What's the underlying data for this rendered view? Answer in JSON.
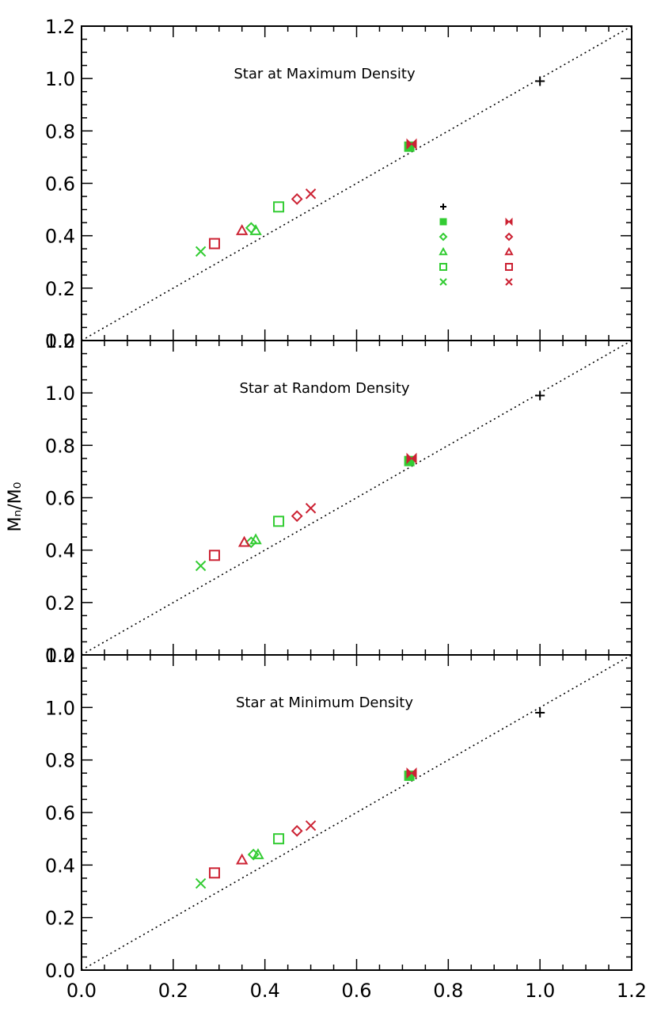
{
  "chart_data": {
    "type": "scatter",
    "xlabel": "",
    "ylabel": "Mₙ/M₀",
    "xlim": [
      0.0,
      1.2
    ],
    "ylim": [
      0.0,
      1.2
    ],
    "x_ticks": [
      "0.0",
      "0.2",
      "0.4",
      "0.6",
      "0.8",
      "1.0",
      "1.2"
    ],
    "y_ticks": [
      "0.0",
      "0.2",
      "0.4",
      "0.6",
      "0.8",
      "1.0",
      "1.2"
    ],
    "reference_line": {
      "style": "dotted",
      "color": "#000000",
      "from": [
        0.0,
        0.0
      ],
      "to": [
        1.2,
        1.2
      ]
    },
    "legend": {
      "placement": "right-middle",
      "entries": [
        {
          "name": "",
          "marker": "plus",
          "color": "#000000"
        },
        {
          "name": "",
          "marker": "filled-square",
          "color": "#33cc33"
        },
        {
          "name": "",
          "marker": "diamond",
          "color": "#33cc33"
        },
        {
          "name": "",
          "marker": "triangle",
          "color": "#33cc33"
        },
        {
          "name": "",
          "marker": "square",
          "color": "#33cc33"
        },
        {
          "name": "",
          "marker": "x",
          "color": "#33cc33"
        },
        {
          "name": "",
          "marker": "bowtie",
          "color": "#cc2233"
        },
        {
          "name": "",
          "marker": "diamond",
          "color": "#cc2233"
        },
        {
          "name": "",
          "marker": "triangle",
          "color": "#cc2233"
        },
        {
          "name": "",
          "marker": "square",
          "color": "#cc2233"
        },
        {
          "name": "",
          "marker": "x",
          "color": "#cc2233"
        }
      ]
    },
    "panels": [
      {
        "title": "Star at Maximum Density",
        "show_legend": true,
        "points": [
          {
            "x": 1.0,
            "y": 0.99,
            "marker": "plus",
            "color": "#000000"
          },
          {
            "x": 0.715,
            "y": 0.74,
            "marker": "filled-square",
            "color": "#33cc33"
          },
          {
            "x": 0.72,
            "y": 0.75,
            "marker": "bowtie",
            "color": "#cc2233"
          },
          {
            "x": 0.37,
            "y": 0.43,
            "marker": "diamond",
            "color": "#33cc33"
          },
          {
            "x": 0.38,
            "y": 0.42,
            "marker": "triangle",
            "color": "#33cc33"
          },
          {
            "x": 0.43,
            "y": 0.51,
            "marker": "square",
            "color": "#33cc33"
          },
          {
            "x": 0.26,
            "y": 0.34,
            "marker": "x",
            "color": "#33cc33"
          },
          {
            "x": 0.47,
            "y": 0.54,
            "marker": "diamond",
            "color": "#cc2233"
          },
          {
            "x": 0.35,
            "y": 0.42,
            "marker": "triangle",
            "color": "#cc2233"
          },
          {
            "x": 0.29,
            "y": 0.37,
            "marker": "square",
            "color": "#cc2233"
          },
          {
            "x": 0.5,
            "y": 0.56,
            "marker": "x",
            "color": "#cc2233"
          }
        ]
      },
      {
        "title": "Star at Random Density",
        "show_legend": false,
        "points": [
          {
            "x": 1.0,
            "y": 0.99,
            "marker": "plus",
            "color": "#000000"
          },
          {
            "x": 0.715,
            "y": 0.74,
            "marker": "filled-square",
            "color": "#33cc33"
          },
          {
            "x": 0.72,
            "y": 0.75,
            "marker": "bowtie",
            "color": "#cc2233"
          },
          {
            "x": 0.37,
            "y": 0.43,
            "marker": "diamond",
            "color": "#33cc33"
          },
          {
            "x": 0.38,
            "y": 0.44,
            "marker": "triangle",
            "color": "#33cc33"
          },
          {
            "x": 0.43,
            "y": 0.51,
            "marker": "square",
            "color": "#33cc33"
          },
          {
            "x": 0.26,
            "y": 0.34,
            "marker": "x",
            "color": "#33cc33"
          },
          {
            "x": 0.47,
            "y": 0.53,
            "marker": "diamond",
            "color": "#cc2233"
          },
          {
            "x": 0.355,
            "y": 0.43,
            "marker": "triangle",
            "color": "#cc2233"
          },
          {
            "x": 0.29,
            "y": 0.38,
            "marker": "square",
            "color": "#cc2233"
          },
          {
            "x": 0.5,
            "y": 0.56,
            "marker": "x",
            "color": "#cc2233"
          }
        ]
      },
      {
        "title": "Star at Minimum Density",
        "show_legend": false,
        "points": [
          {
            "x": 1.0,
            "y": 0.98,
            "marker": "plus",
            "color": "#000000"
          },
          {
            "x": 0.715,
            "y": 0.74,
            "marker": "filled-square",
            "color": "#33cc33"
          },
          {
            "x": 0.72,
            "y": 0.75,
            "marker": "bowtie",
            "color": "#cc2233"
          },
          {
            "x": 0.375,
            "y": 0.44,
            "marker": "diamond",
            "color": "#33cc33"
          },
          {
            "x": 0.385,
            "y": 0.44,
            "marker": "triangle",
            "color": "#33cc33"
          },
          {
            "x": 0.43,
            "y": 0.5,
            "marker": "square",
            "color": "#33cc33"
          },
          {
            "x": 0.26,
            "y": 0.33,
            "marker": "x",
            "color": "#33cc33"
          },
          {
            "x": 0.47,
            "y": 0.53,
            "marker": "diamond",
            "color": "#cc2233"
          },
          {
            "x": 0.35,
            "y": 0.42,
            "marker": "triangle",
            "color": "#cc2233"
          },
          {
            "x": 0.29,
            "y": 0.37,
            "marker": "square",
            "color": "#cc2233"
          },
          {
            "x": 0.5,
            "y": 0.55,
            "marker": "x",
            "color": "#cc2233"
          }
        ]
      }
    ]
  }
}
